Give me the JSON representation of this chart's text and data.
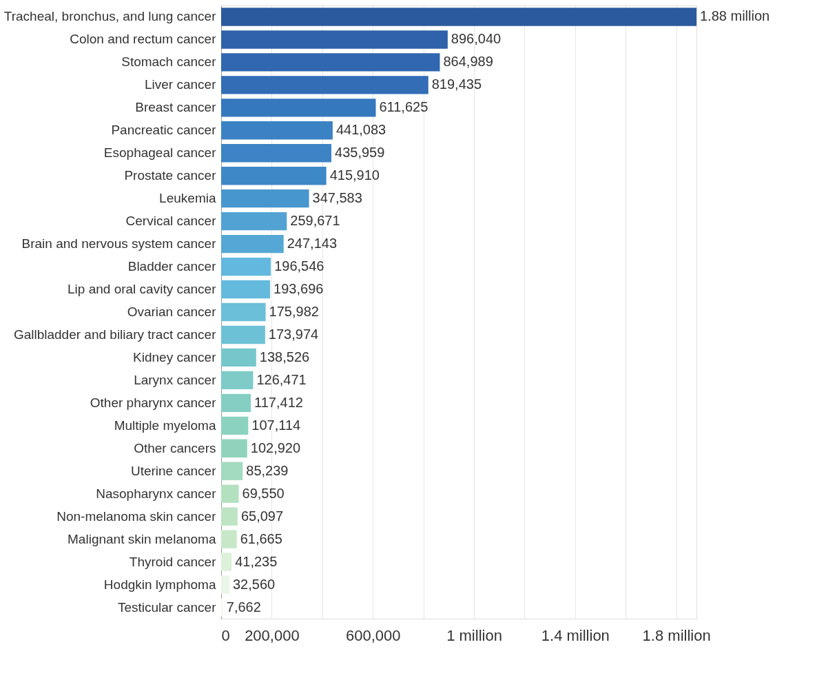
{
  "chart_data": {
    "type": "bar",
    "orientation": "horizontal",
    "categories": [
      "Tracheal, bronchus, and lung cancer",
      "Colon and rectum cancer",
      "Stomach cancer",
      "Liver cancer",
      "Breast cancer",
      "Pancreatic cancer",
      "Esophageal cancer",
      "Prostate cancer",
      "Leukemia",
      "Cervical cancer",
      "Brain and nervous system cancer",
      "Bladder cancer",
      "Lip and oral cavity cancer",
      "Ovarian cancer",
      "Gallbladder and biliary tract cancer",
      "Kidney cancer",
      "Larynx cancer",
      "Other pharynx cancer",
      "Multiple myeloma",
      "Other cancers",
      "Uterine cancer",
      "Nasopharynx cancer",
      "Non-melanoma skin cancer",
      "Malignant skin melanoma",
      "Thyroid cancer",
      "Hodgkin lymphoma",
      "Testicular cancer"
    ],
    "values": [
      1880000,
      896040,
      864989,
      819435,
      611625,
      441083,
      435959,
      415910,
      347583,
      259671,
      247143,
      196546,
      193696,
      175982,
      173974,
      138526,
      126471,
      117412,
      107114,
      102920,
      85239,
      69550,
      65097,
      61665,
      41235,
      32560,
      7662
    ],
    "value_labels": [
      "1.88 million",
      "896,040",
      "864,989",
      "819,435",
      "611,625",
      "441,083",
      "435,959",
      "415,910",
      "347,583",
      "259,671",
      "247,143",
      "196,546",
      "193,696",
      "175,982",
      "173,974",
      "138,526",
      "126,471",
      "117,412",
      "107,114",
      "102,920",
      "85,239",
      "69,550",
      "65,097",
      "61,665",
      "41,235",
      "32,560",
      "7,662"
    ],
    "colors": [
      "#2c5a9e",
      "#2f62aa",
      "#3067b0",
      "#326db6",
      "#3678be",
      "#3b82c4",
      "#3c84c5",
      "#3e88c7",
      "#4796cd",
      "#52a3d3",
      "#55a8d5",
      "#62b8de",
      "#64badd",
      "#6bbfd8",
      "#6dc1d6",
      "#76c7cc",
      "#7ecbc8",
      "#84cec4",
      "#8cd2c0",
      "#90d3bd",
      "#a2dbbe",
      "#b3e1c0",
      "#bde5c4",
      "#c6e8c9",
      "#dcf0da",
      "#eaf6e6",
      "#f5faf2"
    ],
    "xlim": [
      0,
      1880000
    ],
    "xticks": [
      0,
      {
        "value": 200000,
        "label": "200,000"
      },
      {
        "value": 400000,
        "label": null
      },
      {
        "value": 600000,
        "label": "600,000"
      },
      {
        "value": 800000,
        "label": null
      },
      {
        "value": 1000000,
        "label": "1 million"
      },
      {
        "value": 1200000,
        "label": null
      },
      {
        "value": 1400000,
        "label": "1.4 million"
      },
      {
        "value": 1600000,
        "label": null
      },
      {
        "value": 1800000,
        "label": "1.8 million"
      }
    ],
    "grid": "x"
  }
}
